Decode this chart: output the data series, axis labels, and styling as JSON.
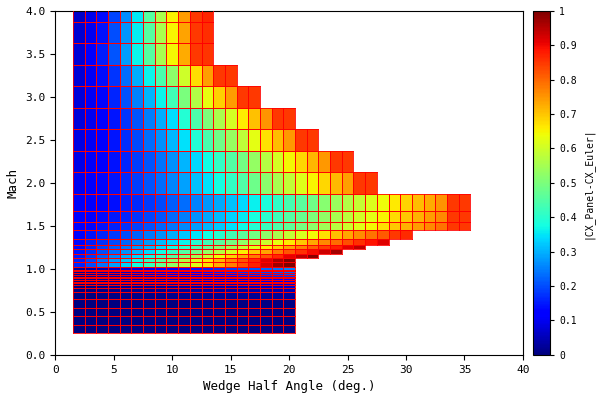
{
  "xlabel": "Wedge Half Angle (deg.)",
  "ylabel": "Mach",
  "colorbar_label": "|CX_Panel-CX_Euler|",
  "xlim": [
    0,
    40
  ],
  "ylim": [
    0,
    4
  ],
  "xticks": [
    0,
    5,
    10,
    15,
    20,
    25,
    30,
    35,
    40
  ],
  "yticks": [
    0,
    0.5,
    1.0,
    1.5,
    2.0,
    2.5,
    3.0,
    3.5,
    4.0
  ],
  "colorbar_ticks": [
    0,
    0.1,
    0.2,
    0.3,
    0.4,
    0.5,
    0.6,
    0.7,
    0.8,
    0.9,
    1.0
  ],
  "vmin": 0,
  "vmax": 1,
  "background_color": "#ffffff",
  "mach_sub": [
    0.3,
    0.4,
    0.5,
    0.6,
    0.7,
    0.75,
    0.8,
    0.82,
    0.84,
    0.86,
    0.88,
    0.9,
    0.92,
    0.94,
    0.96,
    0.98,
    1.0
  ],
  "mach_sup": [
    1.05,
    1.1,
    1.15,
    1.2,
    1.25,
    1.3,
    1.4,
    1.5,
    1.6,
    1.75,
    2.0,
    2.25,
    2.5,
    2.75,
    3.0,
    3.25,
    3.5,
    3.75,
    4.0
  ],
  "angle_start": 2,
  "angle_end": 35,
  "staircase": {
    "0.3": 20,
    "0.4": 20,
    "0.5": 20,
    "0.6": 20,
    "0.7": 20,
    "0.75": 20,
    "0.8": 20,
    "0.82": 20,
    "0.84": 20,
    "0.86": 20,
    "0.88": 20,
    "0.9": 20,
    "0.92": 20,
    "0.94": 20,
    "0.96": 20,
    "0.98": 20,
    "1.0": 20,
    "1.05": 20,
    "1.1": 20,
    "1.15": 22,
    "1.2": 24,
    "1.25": 26,
    "1.3": 28,
    "1.4": 30,
    "1.5": 35,
    "1.6": 35,
    "1.75": 35,
    "2.0": 27,
    "2.25": 25,
    "2.5": 22,
    "2.75": 20,
    "3.0": 17,
    "3.25": 15,
    "3.5": 13,
    "3.75": 13,
    "4.0": 13
  }
}
